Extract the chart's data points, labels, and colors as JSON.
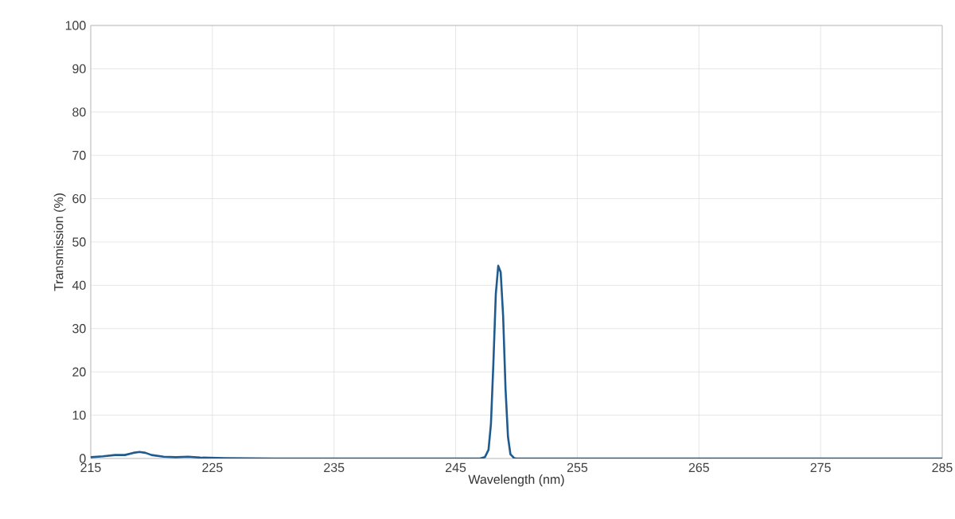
{
  "chart_data": {
    "type": "line",
    "xlabel": "Wavelength (nm)",
    "ylabel": "Transmission (%)",
    "series": [
      {
        "color": "#1f5b8e",
        "x": [
          215,
          216,
          217,
          217.8,
          218.5,
          219,
          219.5,
          220,
          221,
          222,
          223,
          224,
          226,
          230,
          247,
          247.4,
          247.7,
          247.9,
          248.1,
          248.3,
          248.5,
          248.7,
          248.9,
          249.1,
          249.3,
          249.5,
          249.8,
          250,
          285
        ],
        "values": [
          0.3,
          0.5,
          0.8,
          0.8,
          1.3,
          1.5,
          1.3,
          0.8,
          0.4,
          0.3,
          0.4,
          0.2,
          0.1,
          0,
          0,
          0.3,
          2,
          8,
          22,
          38,
          44.5,
          43,
          33,
          16,
          5,
          1,
          0.1,
          0,
          0
        ]
      }
    ],
    "xlim": [
      215,
      285
    ],
    "ylim": [
      0,
      100
    ],
    "xticks": [
      215,
      225,
      235,
      245,
      255,
      265,
      275,
      285
    ],
    "yticks": [
      0,
      10,
      20,
      30,
      40,
      50,
      60,
      70,
      80,
      90,
      100
    ],
    "grid": true,
    "marker": "none",
    "line_style": "solid"
  }
}
